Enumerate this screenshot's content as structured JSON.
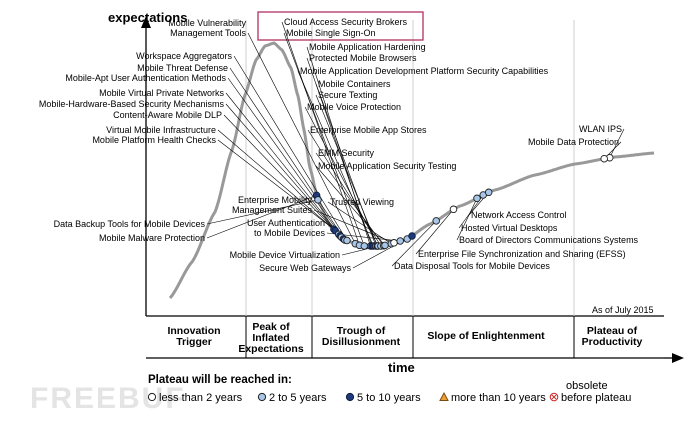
{
  "chart_data": {
    "type": "line",
    "ylabel": "expectations",
    "xlabel": "time",
    "note": "As of July 2015",
    "watermark": "FREEBUF",
    "phases": [
      "Innovation Trigger",
      "Peak of Inflated Expectations",
      "Trough of Disillusionment",
      "Slope of Enlightenment",
      "Plateau of Productivity"
    ],
    "legend": {
      "title": "Plateau will be reached in:",
      "items": [
        {
          "key": "lt2",
          "label": "less than 2 years",
          "fill": "#ffffff",
          "stroke": "#1f1f1f",
          "shape": "circle"
        },
        {
          "key": "2to5",
          "label": "2 to 5 years",
          "fill": "#a8c6e8",
          "stroke": "#1f1f1f",
          "shape": "circle"
        },
        {
          "key": "5to10",
          "label": "5 to 10 years",
          "fill": "#1f3a7a",
          "stroke": "#0d1d40",
          "shape": "circle"
        },
        {
          "key": "gt10",
          "label": "more than 10 years",
          "fill": "#f0a030",
          "stroke": "#7a4a10",
          "shape": "triangle"
        },
        {
          "key": "obs",
          "label": "obsolete\nbefore plateau",
          "fill": "#ffffff",
          "stroke": "#cc2222",
          "shape": "cross"
        }
      ]
    },
    "technologies": [
      {
        "name": "Mobile Malware Protection",
        "t": 0.212,
        "cat": "5to10"
      },
      {
        "name": "Data Backup Tools for Mobile Devices",
        "t": 0.214,
        "cat": "2to5"
      },
      {
        "name": "Mobile Platform Health Checks",
        "t": 0.237,
        "cat": "5to10"
      },
      {
        "name": "Virtual Mobile Infrastructure",
        "t": 0.239,
        "cat": "5to10"
      },
      {
        "name": "Content-Aware Mobile DLP",
        "t": 0.244,
        "cat": "2to5"
      },
      {
        "name": "Mobile-Hardware-Based Security Mechanisms",
        "t": 0.246,
        "cat": "5to10"
      },
      {
        "name": "Mobile Virtual Private Networks",
        "t": 0.248,
        "cat": "2to5"
      },
      {
        "name": "Mobile-Apt User Authentication Methods",
        "t": 0.251,
        "cat": "5to10"
      },
      {
        "name": "Mobile Threat Defense",
        "t": 0.253,
        "cat": "2to5"
      },
      {
        "name": "Workspace Aggregators",
        "t": 0.256,
        "cat": "2to5"
      },
      {
        "name": "Mobile Vulnerability Management Tools",
        "t": 0.268,
        "cat": "2to5"
      },
      {
        "name": "Cloud Access Security Brokers",
        "t": 0.274,
        "cat": "2to5"
      },
      {
        "name": "Mobile Single Sign-On",
        "t": 0.281,
        "cat": "2to5"
      },
      {
        "name": "Mobile Application Hardening",
        "t": 0.29,
        "cat": "2to5"
      },
      {
        "name": "Protected Mobile Browsers",
        "t": 0.292,
        "cat": "5to10"
      },
      {
        "name": "Mobile Application Development Platform Security Capabilities",
        "t": 0.294,
        "cat": "5to10"
      },
      {
        "name": "Mobile Containers",
        "t": 0.298,
        "cat": "2to5"
      },
      {
        "name": "Secure Texting",
        "t": 0.3,
        "cat": "2to5"
      },
      {
        "name": "Mobile Voice Protection",
        "t": 0.301,
        "cat": "2to5"
      },
      {
        "name": "Enterprise Mobile App Stores",
        "t": 0.305,
        "cat": "2to5"
      },
      {
        "name": "EMM Security",
        "t": 0.309,
        "cat": "2to5"
      },
      {
        "name": "Mobile Application Security Testing",
        "t": 0.311,
        "cat": "2to5"
      },
      {
        "name": "Trusted Viewing",
        "t": 0.32,
        "cat": "2to5"
      },
      {
        "name": "Enterprise Mobility Management Suites",
        "t": 0.324,
        "cat": "lt2"
      },
      {
        "name": "User Authentication to Mobile Devices",
        "t": 0.333,
        "cat": "2to5"
      },
      {
        "name": "Mobile Device Virtualization",
        "t": 0.343,
        "cat": "2to5"
      },
      {
        "name": "Secure Web Gateways",
        "t": 0.35,
        "cat": "5to10"
      },
      {
        "name": "Data Disposal Tools for Mobile Devices",
        "t": 0.385,
        "cat": "2to5"
      },
      {
        "name": "Enterprise File Synchronization and Sharing (EFSS)",
        "t": 0.41,
        "cat": "lt2"
      },
      {
        "name": "Board of Directors Communications Systems",
        "t": 0.444,
        "cat": "2to5"
      },
      {
        "name": "Hosted Virtual Desktops",
        "t": 0.453,
        "cat": "2to5"
      },
      {
        "name": "Network Access Control",
        "t": 0.461,
        "cat": "2to5"
      },
      {
        "name": "WLAN IPS",
        "t": 0.636,
        "cat": "lt2"
      },
      {
        "name": "Mobile Data Protection",
        "t": 0.628,
        "cat": "lt2"
      }
    ]
  }
}
